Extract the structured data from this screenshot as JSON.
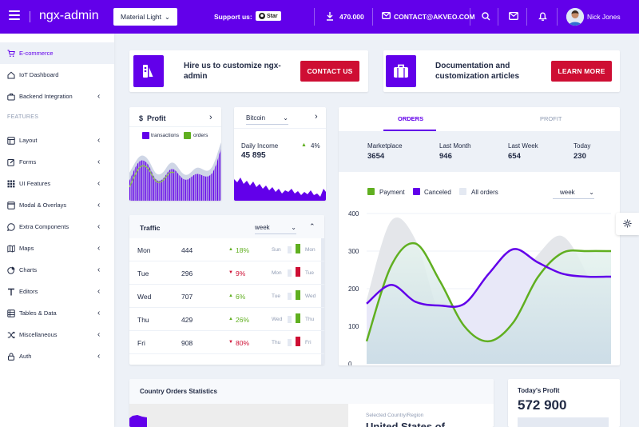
{
  "header": {
    "brand": "ngx-admin",
    "theme_select": "Material Light",
    "support_label": "Support us:",
    "star_label": "Star",
    "downloads": "470.000",
    "contact_email": "CONTACT@AKVEO.COM",
    "user_name": "Nick Jones"
  },
  "sidebar": {
    "features_label": "FEATURES",
    "items": [
      {
        "label": "E-commerce",
        "icon": "shopping-cart-icon",
        "active": true
      },
      {
        "label": "IoT Dashboard",
        "icon": "home-icon"
      },
      {
        "label": "Backend Integration",
        "icon": "briefcase-icon"
      },
      {
        "label": "Layout",
        "icon": "layout-icon"
      },
      {
        "label": "Forms",
        "icon": "edit-icon"
      },
      {
        "label": "UI Features",
        "icon": "keypad-icon"
      },
      {
        "label": "Modal & Overlays",
        "icon": "browser-icon"
      },
      {
        "label": "Extra Components",
        "icon": "message-circle-icon"
      },
      {
        "label": "Maps",
        "icon": "map-icon"
      },
      {
        "label": "Charts",
        "icon": "pie-chart-icon"
      },
      {
        "label": "Editors",
        "icon": "text-icon"
      },
      {
        "label": "Tables & Data",
        "icon": "grid-icon"
      },
      {
        "label": "Miscellaneous",
        "icon": "shuffle-icon"
      },
      {
        "label": "Auth",
        "icon": "lock-icon"
      }
    ]
  },
  "promo": {
    "hire_text": "Hire us to customize ngx-admin",
    "contact_button": "CONTACT US",
    "docs_text": "Documentation and customization articles",
    "learn_button": "LEARN MORE"
  },
  "profit_card": {
    "title": "Profit",
    "legend": [
      "transactions",
      "orders"
    ],
    "colors": {
      "transactions": "#6200ea",
      "orders": "#60af20"
    }
  },
  "bitcoin_card": {
    "select": "Bitcoin",
    "daily_income_label": "Daily Income",
    "daily_income_value": "45 895",
    "delta": "4%"
  },
  "traffic": {
    "title": "Traffic",
    "period": "week",
    "rows": [
      {
        "day": "Mon",
        "value": "444",
        "delta": "18%",
        "dir": "up",
        "prev": "Sun",
        "cur": "Mon"
      },
      {
        "day": "Tue",
        "value": "296",
        "delta": "9%",
        "dir": "down",
        "prev": "Mon",
        "cur": "Tue"
      },
      {
        "day": "Wed",
        "value": "707",
        "delta": "6%",
        "dir": "up",
        "prev": "Tue",
        "cur": "Wed"
      },
      {
        "day": "Thu",
        "value": "429",
        "delta": "26%",
        "dir": "up",
        "prev": "Wed",
        "cur": "Thu"
      },
      {
        "day": "Fri",
        "value": "908",
        "delta": "80%",
        "dir": "down",
        "prev": "Thu",
        "cur": "Fri"
      }
    ]
  },
  "orders": {
    "tabs": [
      "ORDERS",
      "PROFIT"
    ],
    "summary": [
      {
        "label": "Marketplace",
        "value": "3654"
      },
      {
        "label": "Last Month",
        "value": "946"
      },
      {
        "label": "Last Week",
        "value": "654"
      },
      {
        "label": "Today",
        "value": "230"
      }
    ],
    "legend": [
      "Payment",
      "Canceled",
      "All orders"
    ],
    "period": "week"
  },
  "country": {
    "title": "Country Orders Statistics",
    "selected_label": "Selected Country/Region",
    "selected_value": "United States of"
  },
  "today_profit": {
    "label": "Today's Profit",
    "value": "572 900"
  },
  "chart_data": {
    "type": "line",
    "title": "",
    "xlabel": "",
    "ylabel": "",
    "ylim": [
      0,
      400
    ],
    "yticks": [
      "400",
      "300",
      "200",
      "100",
      "0"
    ],
    "x": [
      0,
      1,
      2,
      3,
      4,
      5,
      6,
      7,
      8,
      9,
      10
    ],
    "series": [
      {
        "name": "Payment",
        "color": "#60af20",
        "values": [
          60,
          260,
          320,
          220,
          100,
          60,
          110,
          230,
          295,
          300,
          300
        ]
      },
      {
        "name": "Canceled",
        "color": "#6200ea",
        "values": [
          160,
          210,
          165,
          155,
          160,
          240,
          305,
          270,
          240,
          232,
          232
        ]
      },
      {
        "name": "All orders",
        "color": "#e0e4ec",
        "values": [
          170,
          380,
          330,
          130,
          90,
          130,
          200,
          290,
          340,
          240,
          70
        ]
      }
    ]
  }
}
